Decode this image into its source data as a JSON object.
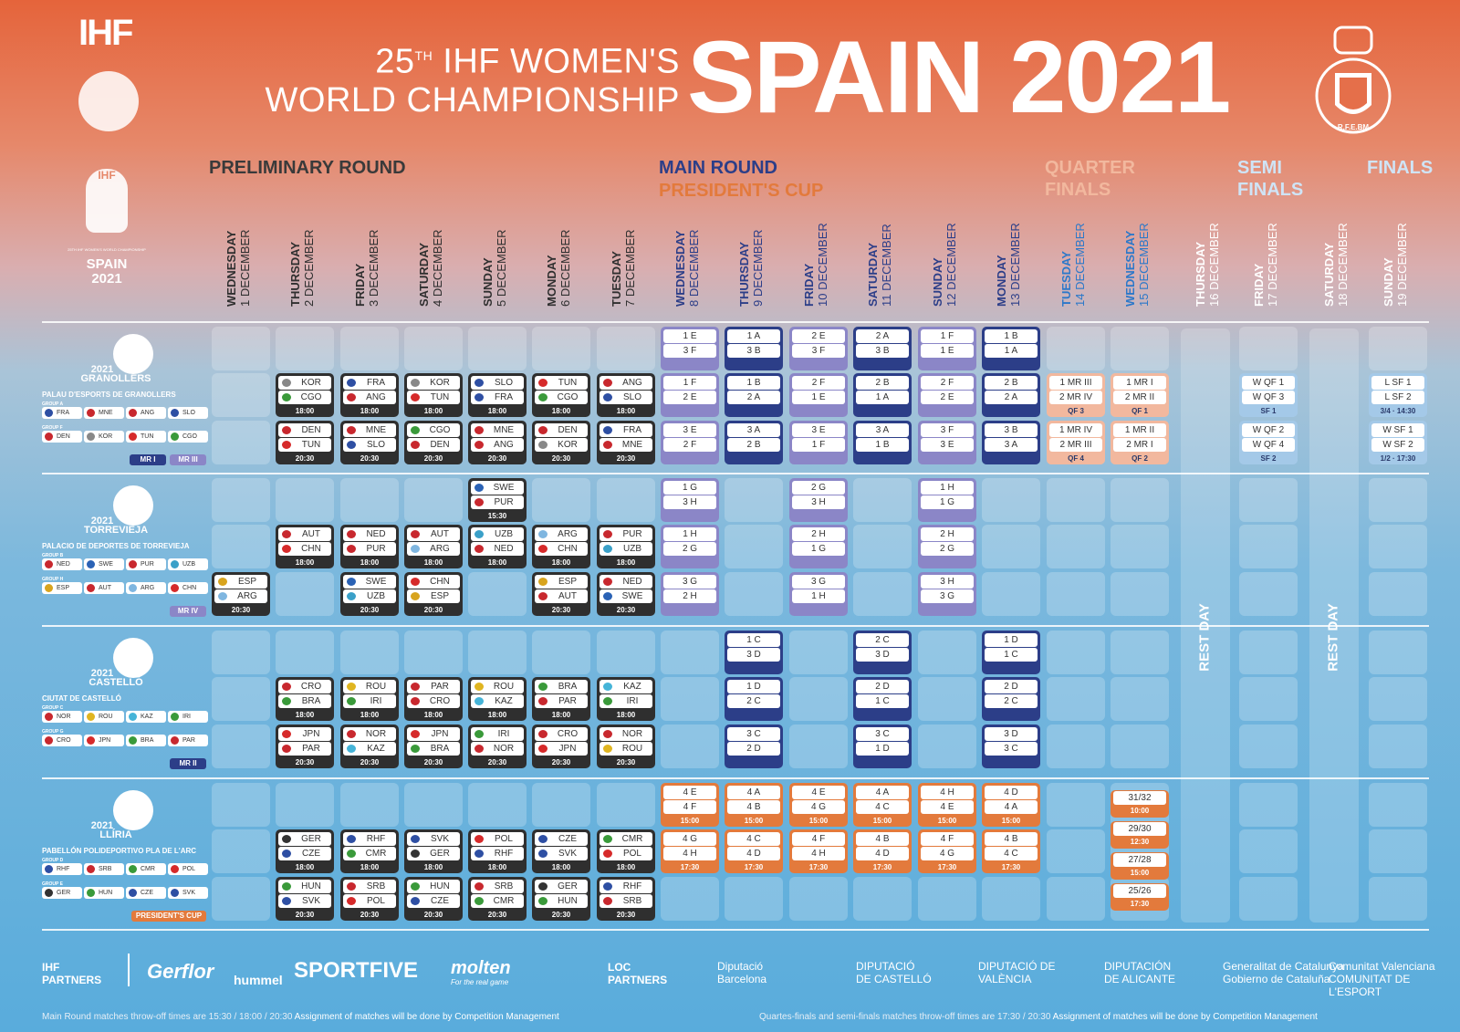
{
  "header": {
    "title_line1_pre": "25",
    "title_sup": "TH",
    "title_line1_post": " IHF WOMEN'S",
    "title_line2": "WORLD CHAMPIONSHIP",
    "big": "SPAIN 2021",
    "ihf": "IHF",
    "crest_text": "R.F.E.BM",
    "emblem_ihf": "IHF",
    "emblem_small": "25TH IHF WOMEN'S WORLD CHAMPIONSHIP",
    "emblem_spain": "SPAIN",
    "emblem_year": "2021"
  },
  "phases": {
    "preliminary": "PRELIMINARY ROUND",
    "main": "MAIN ROUND",
    "presidents": "PRESIDENT'S CUP",
    "qf1": "QUARTER",
    "qf2": "FINALS",
    "sf1": "SEMI",
    "sf2": "FINALS",
    "finals": "FINALS"
  },
  "days": [
    {
      "n": "WEDNESDAY",
      "d": "1 DECEMBER"
    },
    {
      "n": "THURSDAY",
      "d": "2 DECEMBER"
    },
    {
      "n": "FRIDAY",
      "d": "3 DECEMBER"
    },
    {
      "n": "SATURDAY",
      "d": "4 DECEMBER"
    },
    {
      "n": "SUNDAY",
      "d": "5 DECEMBER"
    },
    {
      "n": "MONDAY",
      "d": "6 DECEMBER"
    },
    {
      "n": "TUESDAY",
      "d": "7 DECEMBER"
    },
    {
      "n": "WEDNESDAY",
      "d": "8 DECEMBER"
    },
    {
      "n": "THURSDAY",
      "d": "9 DECEMBER"
    },
    {
      "n": "FRIDAY",
      "d": "10 DECEMBER"
    },
    {
      "n": "SATURDAY",
      "d": "11 DECEMBER"
    },
    {
      "n": "SUNDAY",
      "d": "12 DECEMBER"
    },
    {
      "n": "MONDAY",
      "d": "13 DECEMBER"
    },
    {
      "n": "TUESDAY",
      "d": "14 DECEMBER"
    },
    {
      "n": "WEDNESDAY",
      "d": "15 DECEMBER"
    },
    {
      "n": "THURSDAY",
      "d": "16 DECEMBER"
    },
    {
      "n": "FRIDAY",
      "d": "17 DECEMBER"
    },
    {
      "n": "SATURDAY",
      "d": "18 DECEMBER"
    },
    {
      "n": "SUNDAY",
      "d": "19 DECEMBER"
    }
  ],
  "day_colors": [
    "#2f2f2f",
    "#2f2f2f",
    "#2f2f2f",
    "#2f2f2f",
    "#2f2f2f",
    "#2f2f2f",
    "#2f2f2f",
    "#2c3e88",
    "#2c3e88",
    "#2c3e88",
    "#2c3e88",
    "#2c3e88",
    "#2c3e88",
    "#2c78c9",
    "#2c78c9",
    "#ffffff",
    "#ffffff",
    "#ffffff",
    "#ffffff"
  ],
  "rest_day": "REST DAY",
  "venues": [
    {
      "year": "2021",
      "city": "GRANOLLERS",
      "hall": "PALAU D'ESPORTS DE GRANOLLERS",
      "gA": "GROUP A",
      "gB": "GROUP F",
      "groupA": [
        "FRA",
        "MNE",
        "ANG",
        "SLO"
      ],
      "groupB": [
        "DEN",
        "KOR",
        "TUN",
        "CGO"
      ],
      "tags": [
        "MR I",
        "MR III"
      ]
    },
    {
      "year": "2021",
      "city": "TORREVIEJA",
      "hall": "PALACIO DE DEPORTES DE TORREVIEJA",
      "gA": "GROUP B",
      "gB": "GROUP H",
      "groupA": [
        "NED",
        "SWE",
        "PUR",
        "UZB"
      ],
      "groupB": [
        "ESP",
        "AUT",
        "ARG",
        "CHN"
      ],
      "tags": [
        "MR IV"
      ]
    },
    {
      "year": "2021",
      "city": "CASTELLÓ",
      "hall": "CIUTAT DE CASTELLÓ",
      "gA": "GROUP C",
      "gB": "GROUP G",
      "groupA": [
        "NOR",
        "ROU",
        "KAZ",
        "IRI"
      ],
      "groupB": [
        "CRO",
        "JPN",
        "BRA",
        "PAR"
      ],
      "tags": [
        "MR II"
      ]
    },
    {
      "year": "2021",
      "city": "LLÍRIA",
      "hall": "PABELLÓN POLIDEPORTIVO PLA DE L'ARC",
      "gA": "GROUP D",
      "gB": "GROUP E",
      "groupA": [
        "RHF",
        "SRB",
        "CMR",
        "POL"
      ],
      "groupB": [
        "GER",
        "HUN",
        "CZE",
        "SVK"
      ],
      "tags": [
        "PRESIDENT'S CUP"
      ]
    }
  ],
  "prelim": [
    [
      {
        "c": 1,
        "s": 1,
        "t1": "KOR",
        "t2": "CGO",
        "tm": "18:00"
      },
      {
        "c": 2,
        "s": 1,
        "t1": "FRA",
        "t2": "ANG",
        "tm": "18:00"
      },
      {
        "c": 3,
        "s": 1,
        "t1": "KOR",
        "t2": "TUN",
        "tm": "18:00"
      },
      {
        "c": 4,
        "s": 1,
        "t1": "SLO",
        "t2": "FRA",
        "tm": "18:00"
      },
      {
        "c": 5,
        "s": 1,
        "t1": "TUN",
        "t2": "CGO",
        "tm": "18:00"
      },
      {
        "c": 6,
        "s": 1,
        "t1": "ANG",
        "t2": "SLO",
        "tm": "18:00"
      },
      {
        "c": 1,
        "s": 2,
        "t1": "DEN",
        "t2": "TUN",
        "tm": "20:30"
      },
      {
        "c": 2,
        "s": 2,
        "t1": "MNE",
        "t2": "SLO",
        "tm": "20:30"
      },
      {
        "c": 3,
        "s": 2,
        "t1": "CGO",
        "t2": "DEN",
        "tm": "20:30"
      },
      {
        "c": 4,
        "s": 2,
        "t1": "MNE",
        "t2": "ANG",
        "tm": "20:30"
      },
      {
        "c": 5,
        "s": 2,
        "t1": "DEN",
        "t2": "KOR",
        "tm": "20:30"
      },
      {
        "c": 6,
        "s": 2,
        "t1": "FRA",
        "t2": "MNE",
        "tm": "20:30"
      }
    ],
    [
      {
        "c": 4,
        "s": 0,
        "t1": "SWE",
        "t2": "PUR",
        "tm": "15:30"
      },
      {
        "c": 1,
        "s": 1,
        "t1": "AUT",
        "t2": "CHN",
        "tm": "18:00"
      },
      {
        "c": 2,
        "s": 1,
        "t1": "NED",
        "t2": "PUR",
        "tm": "18:00"
      },
      {
        "c": 3,
        "s": 1,
        "t1": "AUT",
        "t2": "ARG",
        "tm": "18:00"
      },
      {
        "c": 4,
        "s": 1,
        "t1": "UZB",
        "t2": "NED",
        "tm": "18:00"
      },
      {
        "c": 5,
        "s": 1,
        "t1": "ARG",
        "t2": "CHN",
        "tm": "18:00"
      },
      {
        "c": 6,
        "s": 1,
        "t1": "PUR",
        "t2": "UZB",
        "tm": "18:00"
      },
      {
        "c": 0,
        "s": 2,
        "t1": "ESP",
        "t2": "ARG",
        "tm": "20:30"
      },
      {
        "c": 2,
        "s": 2,
        "t1": "SWE",
        "t2": "UZB",
        "tm": "20:30"
      },
      {
        "c": 3,
        "s": 2,
        "t1": "CHN",
        "t2": "ESP",
        "tm": "20:30"
      },
      {
        "c": 5,
        "s": 2,
        "t1": "ESP",
        "t2": "AUT",
        "tm": "20:30"
      },
      {
        "c": 6,
        "s": 2,
        "t1": "NED",
        "t2": "SWE",
        "tm": "20:30"
      }
    ],
    [
      {
        "c": 1,
        "s": 1,
        "t1": "CRO",
        "t2": "BRA",
        "tm": "18:00"
      },
      {
        "c": 2,
        "s": 1,
        "t1": "ROU",
        "t2": "IRI",
        "tm": "18:00"
      },
      {
        "c": 3,
        "s": 1,
        "t1": "PAR",
        "t2": "CRO",
        "tm": "18:00"
      },
      {
        "c": 4,
        "s": 1,
        "t1": "ROU",
        "t2": "KAZ",
        "tm": "18:00"
      },
      {
        "c": 5,
        "s": 1,
        "t1": "BRA",
        "t2": "PAR",
        "tm": "18:00"
      },
      {
        "c": 6,
        "s": 1,
        "t1": "KAZ",
        "t2": "IRI",
        "tm": "18:00"
      },
      {
        "c": 1,
        "s": 2,
        "t1": "JPN",
        "t2": "PAR",
        "tm": "20:30"
      },
      {
        "c": 2,
        "s": 2,
        "t1": "NOR",
        "t2": "KAZ",
        "tm": "20:30"
      },
      {
        "c": 3,
        "s": 2,
        "t1": "JPN",
        "t2": "BRA",
        "tm": "20:30"
      },
      {
        "c": 4,
        "s": 2,
        "t1": "IRI",
        "t2": "NOR",
        "tm": "20:30"
      },
      {
        "c": 5,
        "s": 2,
        "t1": "CRO",
        "t2": "JPN",
        "tm": "20:30"
      },
      {
        "c": 6,
        "s": 2,
        "t1": "NOR",
        "t2": "ROU",
        "tm": "20:30"
      }
    ],
    [
      {
        "c": 1,
        "s": 1,
        "t1": "GER",
        "t2": "CZE",
        "tm": "18:00"
      },
      {
        "c": 2,
        "s": 1,
        "t1": "RHF",
        "t2": "CMR",
        "tm": "18:00"
      },
      {
        "c": 3,
        "s": 1,
        "t1": "SVK",
        "t2": "GER",
        "tm": "18:00"
      },
      {
        "c": 4,
        "s": 1,
        "t1": "POL",
        "t2": "RHF",
        "tm": "18:00"
      },
      {
        "c": 5,
        "s": 1,
        "t1": "CZE",
        "t2": "SVK",
        "tm": "18:00"
      },
      {
        "c": 6,
        "s": 1,
        "t1": "CMR",
        "t2": "POL",
        "tm": "18:00"
      },
      {
        "c": 1,
        "s": 2,
        "t1": "HUN",
        "t2": "SVK",
        "tm": "20:30"
      },
      {
        "c": 2,
        "s": 2,
        "t1": "SRB",
        "t2": "POL",
        "tm": "20:30"
      },
      {
        "c": 3,
        "s": 2,
        "t1": "HUN",
        "t2": "CZE",
        "tm": "20:30"
      },
      {
        "c": 4,
        "s": 2,
        "t1": "SRB",
        "t2": "CMR",
        "tm": "20:30"
      },
      {
        "c": 5,
        "s": 2,
        "t1": "GER",
        "t2": "HUN",
        "tm": "20:30"
      },
      {
        "c": 6,
        "s": 2,
        "t1": "RHF",
        "t2": "SRB",
        "tm": "20:30"
      }
    ]
  ],
  "main": [
    [
      {
        "c": 7,
        "s": 0,
        "t1": "1 E",
        "t2": "3 F",
        "k": "p"
      },
      {
        "c": 8,
        "s": 0,
        "t1": "1 A",
        "t2": "3 B",
        "k": "n"
      },
      {
        "c": 9,
        "s": 0,
        "t1": "2 E",
        "t2": "3 F",
        "k": "p"
      },
      {
        "c": 10,
        "s": 0,
        "t1": "2 A",
        "t2": "3 B",
        "k": "n"
      },
      {
        "c": 11,
        "s": 0,
        "t1": "1 F",
        "t2": "1 E",
        "k": "p"
      },
      {
        "c": 12,
        "s": 0,
        "t1": "1 B",
        "t2": "1 A",
        "k": "n"
      },
      {
        "c": 7,
        "s": 1,
        "t1": "1 F",
        "t2": "2 E",
        "k": "p"
      },
      {
        "c": 8,
        "s": 1,
        "t1": "1 B",
        "t2": "2 A",
        "k": "n"
      },
      {
        "c": 9,
        "s": 1,
        "t1": "2 F",
        "t2": "1 E",
        "k": "p"
      },
      {
        "c": 10,
        "s": 1,
        "t1": "2 B",
        "t2": "1 A",
        "k": "n"
      },
      {
        "c": 11,
        "s": 1,
        "t1": "2 F",
        "t2": "2 E",
        "k": "p"
      },
      {
        "c": 12,
        "s": 1,
        "t1": "2 B",
        "t2": "2 A",
        "k": "n"
      },
      {
        "c": 7,
        "s": 2,
        "t1": "3 E",
        "t2": "2 F",
        "k": "p"
      },
      {
        "c": 8,
        "s": 2,
        "t1": "3 A",
        "t2": "2 B",
        "k": "n"
      },
      {
        "c": 9,
        "s": 2,
        "t1": "3 E",
        "t2": "1 F",
        "k": "p"
      },
      {
        "c": 10,
        "s": 2,
        "t1": "3 A",
        "t2": "1 B",
        "k": "n"
      },
      {
        "c": 11,
        "s": 2,
        "t1": "3 F",
        "t2": "3 E",
        "k": "p"
      },
      {
        "c": 12,
        "s": 2,
        "t1": "3 B",
        "t2": "3 A",
        "k": "n"
      },
      {
        "c": 13,
        "s": 1,
        "t1": "1 MR III",
        "t2": "2 MR IV",
        "tm": "QF 3",
        "k": "q"
      },
      {
        "c": 14,
        "s": 1,
        "t1": "1 MR I",
        "t2": "2 MR II",
        "tm": "QF 1",
        "k": "q"
      },
      {
        "c": 13,
        "s": 2,
        "t1": "1 MR IV",
        "t2": "2 MR III",
        "tm": "QF 4",
        "k": "q"
      },
      {
        "c": 14,
        "s": 2,
        "t1": "1 MR II",
        "t2": "2 MR I",
        "tm": "QF 2",
        "k": "q"
      },
      {
        "c": 16,
        "s": 1,
        "t1": "W QF 1",
        "t2": "W QF 3",
        "tm": "SF 1",
        "k": "s"
      },
      {
        "c": 16,
        "s": 2,
        "t1": "W QF 2",
        "t2": "W QF 4",
        "tm": "SF 2",
        "k": "s"
      },
      {
        "c": 18,
        "s": 1,
        "t1": "L SF 1",
        "t2": "L SF 2",
        "tm": "3/4 · 14:30",
        "k": "s"
      },
      {
        "c": 18,
        "s": 2,
        "t1": "W SF 1",
        "t2": "W SF 2",
        "tm": "1/2 · 17:30",
        "k": "s"
      }
    ],
    [
      {
        "c": 7,
        "s": 0,
        "t1": "1 G",
        "t2": "3 H",
        "k": "p"
      },
      {
        "c": 9,
        "s": 0,
        "t1": "2 G",
        "t2": "3 H",
        "k": "p"
      },
      {
        "c": 11,
        "s": 0,
        "t1": "1 H",
        "t2": "1 G",
        "k": "p"
      },
      {
        "c": 7,
        "s": 1,
        "t1": "1 H",
        "t2": "2 G",
        "k": "p"
      },
      {
        "c": 9,
        "s": 1,
        "t1": "2 H",
        "t2": "1 G",
        "k": "p"
      },
      {
        "c": 11,
        "s": 1,
        "t1": "2 H",
        "t2": "2 G",
        "k": "p"
      },
      {
        "c": 7,
        "s": 2,
        "t1": "3 G",
        "t2": "2 H",
        "k": "p"
      },
      {
        "c": 9,
        "s": 2,
        "t1": "3 G",
        "t2": "1 H",
        "k": "p"
      },
      {
        "c": 11,
        "s": 2,
        "t1": "3 H",
        "t2": "3 G",
        "k": "p"
      }
    ],
    [
      {
        "c": 8,
        "s": 0,
        "t1": "1 C",
        "t2": "3 D",
        "k": "n"
      },
      {
        "c": 10,
        "s": 0,
        "t1": "2 C",
        "t2": "3 D",
        "k": "n"
      },
      {
        "c": 12,
        "s": 0,
        "t1": "1 D",
        "t2": "1 C",
        "k": "n"
      },
      {
        "c": 8,
        "s": 1,
        "t1": "1 D",
        "t2": "2 C",
        "k": "n"
      },
      {
        "c": 10,
        "s": 1,
        "t1": "2 D",
        "t2": "1 C",
        "k": "n"
      },
      {
        "c": 12,
        "s": 1,
        "t1": "2 D",
        "t2": "2 C",
        "k": "n"
      },
      {
        "c": 8,
        "s": 2,
        "t1": "3 C",
        "t2": "2 D",
        "k": "n"
      },
      {
        "c": 10,
        "s": 2,
        "t1": "3 C",
        "t2": "1 D",
        "k": "n"
      },
      {
        "c": 12,
        "s": 2,
        "t1": "3 D",
        "t2": "3 C",
        "k": "n"
      }
    ],
    [
      {
        "c": 7,
        "s": 0,
        "t1": "4 E",
        "t2": "4 F",
        "tm": "15:00",
        "k": "o"
      },
      {
        "c": 8,
        "s": 0,
        "t1": "4 A",
        "t2": "4 B",
        "tm": "15:00",
        "k": "o"
      },
      {
        "c": 9,
        "s": 0,
        "t1": "4 E",
        "t2": "4 G",
        "tm": "15:00",
        "k": "o"
      },
      {
        "c": 10,
        "s": 0,
        "t1": "4 A",
        "t2": "4 C",
        "tm": "15:00",
        "k": "o"
      },
      {
        "c": 11,
        "s": 0,
        "t1": "4 H",
        "t2": "4 E",
        "tm": "15:00",
        "k": "o"
      },
      {
        "c": 12,
        "s": 0,
        "t1": "4 D",
        "t2": "4 A",
        "tm": "15:00",
        "k": "o"
      },
      {
        "c": 7,
        "s": 1,
        "t1": "4 G",
        "t2": "4 H",
        "tm": "17:30",
        "k": "o"
      },
      {
        "c": 8,
        "s": 1,
        "t1": "4 C",
        "t2": "4 D",
        "tm": "17:30",
        "k": "o"
      },
      {
        "c": 9,
        "s": 1,
        "t1": "4 F",
        "t2": "4 H",
        "tm": "17:30",
        "k": "o"
      },
      {
        "c": 10,
        "s": 1,
        "t1": "4 B",
        "t2": "4 D",
        "tm": "17:30",
        "k": "o"
      },
      {
        "c": 11,
        "s": 1,
        "t1": "4 F",
        "t2": "4 G",
        "tm": "17:30",
        "k": "o"
      },
      {
        "c": 12,
        "s": 1,
        "t1": "4 B",
        "t2": "4 C",
        "tm": "17:30",
        "k": "o"
      }
    ]
  ],
  "placement": [
    {
      "t": "31/32",
      "tm": "10:00"
    },
    {
      "t": "29/30",
      "tm": "12:30"
    },
    {
      "t": "27/28",
      "tm": "15:00"
    },
    {
      "t": "25/26",
      "tm": "17:30"
    }
  ],
  "flags": {
    "FRA": "#2e4fa3",
    "MNE": "#c8282e",
    "ANG": "#c8282e",
    "SLO": "#2e4fa3",
    "DEN": "#c8282e",
    "KOR": "#888888",
    "TUN": "#d62a2a",
    "CGO": "#3a9a3a",
    "NED": "#c8282e",
    "SWE": "#2a62b5",
    "PUR": "#c8282e",
    "UZB": "#3aa0c8",
    "ESP": "#d8a41e",
    "AUT": "#c8282e",
    "ARG": "#7fb6e0",
    "CHN": "#d62a2a",
    "NOR": "#c8282e",
    "ROU": "#e0b520",
    "KAZ": "#45b4d8",
    "IRI": "#3a9a3a",
    "CRO": "#c8282e",
    "JPN": "#d62a2a",
    "BRA": "#3a9a3a",
    "PAR": "#c8282e",
    "RHF": "#2e4fa3",
    "SRB": "#c8282e",
    "CMR": "#3a9a3a",
    "POL": "#d62a2a",
    "GER": "#333333",
    "HUN": "#3a9a3a",
    "CZE": "#2e4fa3",
    "SVK": "#2e4fa3"
  },
  "partners": {
    "ihf_label": "IHF PARTNERS",
    "loc_label": "LOC PARTNERS",
    "ihf": [
      "Gerflor",
      "hummel",
      "SPORTFIVE",
      "molten"
    ],
    "molten_tag": "For the real game",
    "loc": [
      {
        "a": "Diputació",
        "b": "Barcelona"
      },
      {
        "a": "DIPUTACIÓ",
        "b": "DE CASTELLÓ"
      },
      {
        "a": "DIPUTACIÓ DE",
        "b": "VALÈNCIA"
      },
      {
        "a": "DIPUTACIÓN",
        "b": "DE ALICANTE"
      },
      {
        "a": "Generalitat de Catalunya",
        "b": "Gobierno de Cataluña"
      },
      {
        "a": "Comunitat Valenciana",
        "b": "COMUNITAT DE L'ESPORT"
      }
    ]
  },
  "footnotes": {
    "left_a": "Main Round matches throw-off times are 15:30 / 18:00 / 20:30",
    "left_b": "Assignment of matches will be done by Competition Management",
    "right_a": "Quartes-finals and semi-finals matches throw-off times are 17:30 / 20:30",
    "right_b": "Assignment of matches will be done by Competition Management"
  }
}
